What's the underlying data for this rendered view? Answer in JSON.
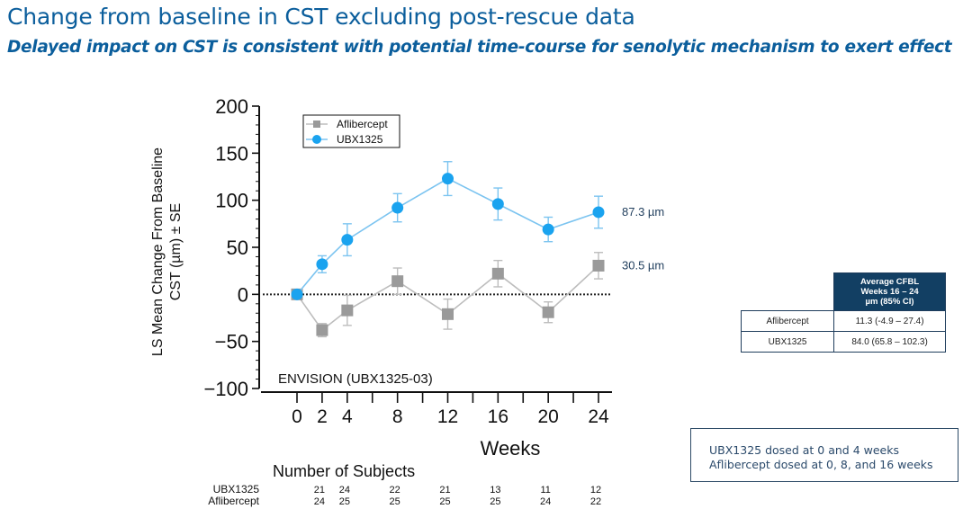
{
  "header": {
    "title": "Change from baseline in CST excluding post-rescue data",
    "subtitle": "Delayed impact on CST is consistent with potential time-course for senolytic mechanism to exert effect"
  },
  "colors": {
    "title": "#0b5e9c",
    "ubx": "#1aa3ef",
    "ubx_line": "#7cc4f0",
    "aflibercept": "#9a9a9a",
    "aflibercept_line": "#bdbdbd",
    "table_header_bg": "#123f63"
  },
  "chart_data": {
    "type": "line",
    "title": "",
    "study_label": "ENVISION (UBX1325-03)",
    "xlabel": "Weeks",
    "ylabel": "LS Mean Change From Baseline CST (µm) ± SE",
    "ylabel_lines": [
      "LS Mean Change From Baseline",
      "CST (µm) ± SE"
    ],
    "x_ticks": [
      0,
      2,
      4,
      8,
      12,
      16,
      20,
      24
    ],
    "y_ticks": [
      200,
      150,
      100,
      50,
      0,
      -50,
      -100
    ],
    "xlim": [
      0,
      24
    ],
    "ylim": [
      -100,
      200
    ],
    "legend_position": "top-left",
    "series": [
      {
        "name": "Aflibercept",
        "marker": "square",
        "x": [
          0,
          2,
          4,
          8,
          12,
          16,
          20,
          24
        ],
        "y": [
          0,
          -38,
          -17,
          14,
          -21,
          22,
          -19,
          30.5
        ],
        "se": [
          0,
          7,
          16,
          14,
          16,
          14,
          11,
          14
        ]
      },
      {
        "name": "UBX1325",
        "marker": "circle",
        "x": [
          0,
          2,
          4,
          8,
          12,
          16,
          20,
          24
        ],
        "y": [
          0,
          32,
          58,
          92,
          123,
          96,
          69,
          87.3
        ],
        "se": [
          0,
          9,
          17,
          15,
          18,
          17,
          13,
          17
        ]
      }
    ],
    "end_labels": {
      "UBX1325": "87.3 µm",
      "Aflibercept": "30.5 µm"
    },
    "subjects": {
      "title": "Number of Subjects",
      "rows": [
        {
          "name": "UBX1325",
          "counts": [
            "21",
            "24",
            "22",
            "21",
            "13",
            "11",
            "12"
          ]
        },
        {
          "name": "Aflibercept",
          "counts": [
            "24",
            "25",
            "25",
            "25",
            "25",
            "24",
            "22"
          ]
        }
      ]
    }
  },
  "cfbl_table": {
    "header_lines": [
      "Average CFBL",
      "Weeks 16 – 24",
      "µm (85% CI)"
    ],
    "rows": [
      {
        "name": "Aflibercept",
        "value": "11.3 (-4.9 – 27.4)"
      },
      {
        "name": "UBX1325",
        "value": "84.0 (65.8 – 102.3)"
      }
    ]
  },
  "dosing_note": {
    "line1": "UBX1325 dosed at 0 and 4 weeks",
    "line2": "Aflibercept dosed at 0, 8, and 16 weeks"
  }
}
